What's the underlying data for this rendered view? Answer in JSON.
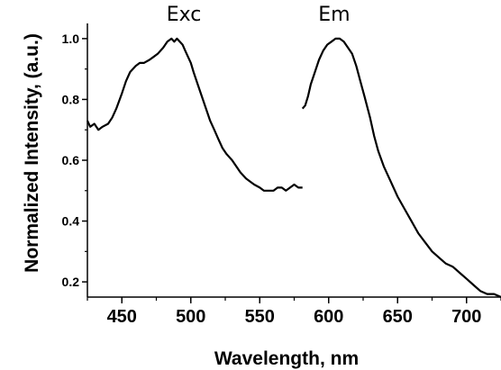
{
  "chart_data": {
    "type": "line",
    "xlabel": "Wavelength, nm",
    "ylabel": "Normalized Intensity, (a.u.)",
    "xlim": [
      425,
      725
    ],
    "ylim": [
      0.15,
      1.05
    ],
    "xticks": [
      450,
      500,
      550,
      600,
      650,
      700
    ],
    "yticks": [
      0.2,
      0.4,
      0.6,
      0.8,
      1.0
    ],
    "xtick_labels": [
      "450",
      "500",
      "550",
      "600",
      "650",
      "700"
    ],
    "ytick_labels": [
      "0.2",
      "0.4",
      "0.6",
      "0.8",
      "1.0"
    ],
    "annotations": [
      {
        "text": "Exc",
        "x": 495,
        "y": 1.05
      },
      {
        "text": "Em",
        "x": 604,
        "y": 1.05
      }
    ],
    "grid": false,
    "series": [
      {
        "x": [
          425,
          427,
          430,
          433,
          436,
          440,
          443,
          446,
          450,
          453,
          456,
          460,
          463,
          466,
          470,
          473,
          476,
          480,
          483,
          486,
          488,
          490,
          492,
          494,
          496,
          498,
          500,
          502,
          505,
          508,
          511,
          514,
          517,
          520,
          523,
          526,
          530,
          533,
          536,
          540,
          543,
          546,
          550,
          553,
          556,
          560,
          563,
          566,
          569,
          572,
          575,
          578,
          581
        ],
        "y": [
          0.73,
          0.71,
          0.72,
          0.7,
          0.71,
          0.72,
          0.74,
          0.77,
          0.82,
          0.86,
          0.89,
          0.91,
          0.92,
          0.92,
          0.93,
          0.94,
          0.95,
          0.97,
          0.99,
          1.0,
          0.99,
          1.0,
          0.99,
          0.98,
          0.96,
          0.94,
          0.92,
          0.89,
          0.85,
          0.81,
          0.77,
          0.73,
          0.7,
          0.67,
          0.64,
          0.62,
          0.6,
          0.58,
          0.56,
          0.54,
          0.53,
          0.52,
          0.51,
          0.5,
          0.5,
          0.5,
          0.51,
          0.51,
          0.5,
          0.51,
          0.52,
          0.51,
          0.51
        ]
      },
      {
        "x": [
          581,
          583,
          585,
          587,
          590,
          593,
          596,
          599,
          602,
          605,
          608,
          611,
          614,
          617,
          620,
          623,
          626,
          630,
          633,
          636,
          640,
          645,
          650,
          655,
          660,
          665,
          670,
          675,
          680,
          685,
          690,
          695,
          700,
          705,
          710,
          715,
          720,
          725
        ],
        "y": [
          0.77,
          0.78,
          0.81,
          0.85,
          0.89,
          0.93,
          0.96,
          0.98,
          0.99,
          1.0,
          1.0,
          0.99,
          0.97,
          0.95,
          0.91,
          0.86,
          0.81,
          0.74,
          0.68,
          0.63,
          0.58,
          0.53,
          0.48,
          0.44,
          0.4,
          0.36,
          0.33,
          0.3,
          0.28,
          0.26,
          0.25,
          0.23,
          0.21,
          0.19,
          0.17,
          0.16,
          0.16,
          0.15
        ]
      }
    ]
  }
}
